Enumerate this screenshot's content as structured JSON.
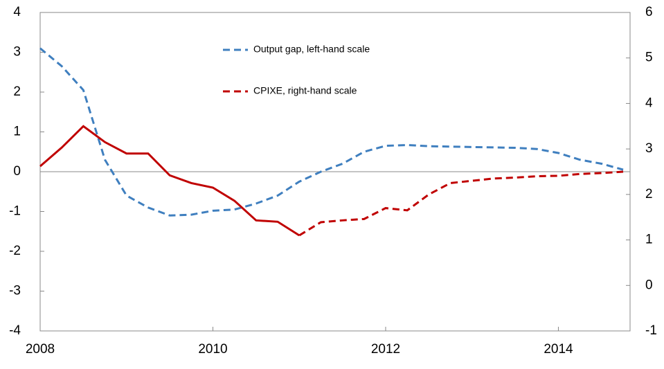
{
  "chart_data": {
    "type": "line",
    "x": [
      2008,
      2008.25,
      2008.5,
      2008.75,
      2009,
      2009.25,
      2009.5,
      2009.75,
      2010,
      2010.25,
      2010.5,
      2010.75,
      2011,
      2011.25,
      2011.5,
      2011.75,
      2012,
      2012.25,
      2012.5,
      2012.75,
      2013,
      2013.25,
      2013.5,
      2013.75,
      2014,
      2014.25,
      2014.5,
      2014.75
    ],
    "series": [
      {
        "name": "Output gap, left-hand scale",
        "color": "#3f7fbf",
        "dash": "dashed",
        "values": [
          3.1,
          2.65,
          2.05,
          0.3,
          -0.6,
          -0.9,
          -1.1,
          -1.08,
          -0.98,
          -0.95,
          -0.8,
          -0.6,
          -0.25,
          0.0,
          0.2,
          0.5,
          0.65,
          0.67,
          0.64,
          0.63,
          0.62,
          0.61,
          0.6,
          0.57,
          0.47,
          0.3,
          0.2,
          0.05
        ]
      },
      {
        "name": "CPIXE, right-hand scale",
        "color": "#c00000",
        "axis": "y2",
        "dash": "dashed",
        "solid_until": 2011,
        "values": [
          2.62,
          3.03,
          3.5,
          3.15,
          2.9,
          2.9,
          2.42,
          2.25,
          2.15,
          1.86,
          1.43,
          1.4,
          1.1,
          1.39,
          1.43,
          1.46,
          1.7,
          1.65,
          2.0,
          2.25,
          2.3,
          2.35,
          2.37,
          2.4,
          2.41,
          2.45,
          2.47,
          2.5
        ]
      }
    ],
    "xlim": [
      2008,
      2014.83
    ],
    "xticks": [
      2008,
      2010,
      2012,
      2014
    ],
    "ylim": [
      -4,
      4
    ],
    "yticks": [
      -4,
      -3,
      -2,
      -1,
      0,
      1,
      2,
      3,
      4
    ],
    "y2lim": [
      -1,
      6
    ],
    "y2ticks": [
      -1,
      0,
      1,
      2,
      3,
      4,
      5,
      6
    ],
    "zero_line": true
  }
}
